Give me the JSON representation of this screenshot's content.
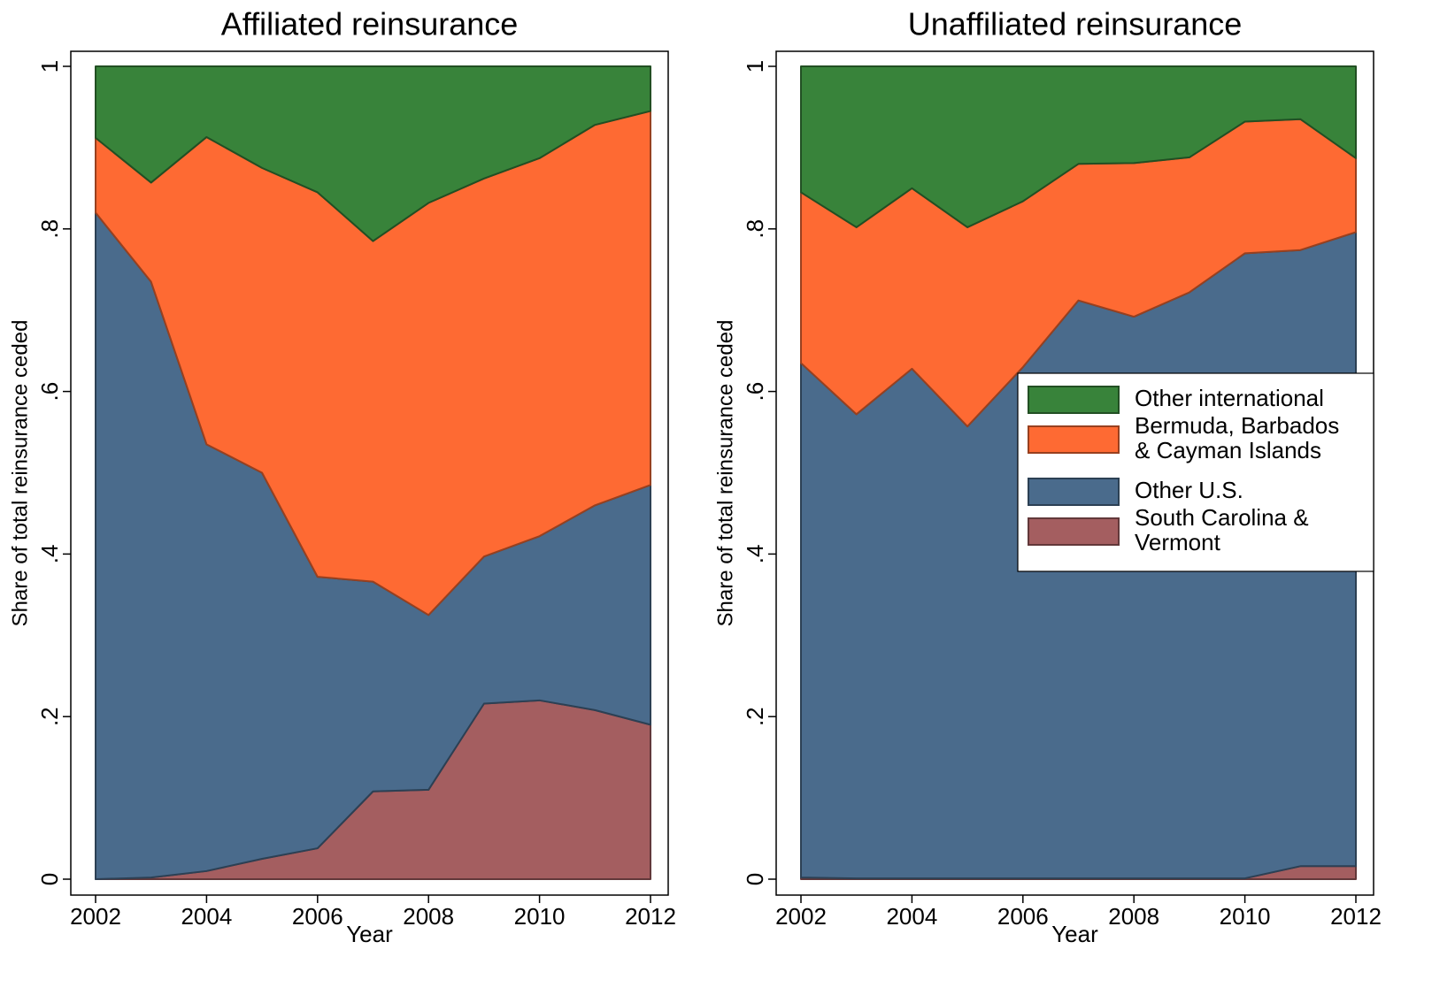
{
  "chart_data": [
    {
      "type": "area",
      "stacked": true,
      "title": "Affiliated reinsurance",
      "xlabel": "Year",
      "ylabel": "Share of total reinsurance ceded",
      "x": [
        2002,
        2003,
        2004,
        2005,
        2006,
        2007,
        2008,
        2009,
        2010,
        2011,
        2012
      ],
      "xlim": [
        2002,
        2012
      ],
      "xticks": [
        2002,
        2004,
        2006,
        2008,
        2010,
        2012
      ],
      "ylim": [
        0,
        1
      ],
      "yticks": [
        0,
        {
          "value": 0.2,
          "label": ".2"
        },
        {
          "value": 0.4,
          "label": ".4"
        },
        {
          "value": 0.6,
          "label": ".6"
        },
        {
          "value": 0.8,
          "label": ".8"
        },
        1
      ],
      "series": [
        {
          "color": "#a45e60",
          "values": [
            0,
            0.002,
            0.01,
            0.025,
            0.038,
            0.108,
            0.11,
            0.216,
            0.22,
            0.208,
            0.19
          ]
        },
        {
          "color": "#4a6b8c",
          "values": [
            0.82,
            0.733,
            0.525,
            0.475,
            0.334,
            0.258,
            0.215,
            0.181,
            0.202,
            0.252,
            0.295
          ]
        },
        {
          "color": "#fe6a33",
          "values": [
            0.092,
            0.122,
            0.378,
            0.375,
            0.473,
            0.419,
            0.507,
            0.465,
            0.465,
            0.468,
            0.46
          ]
        },
        {
          "color": "#38833a",
          "values": [
            0.088,
            0.143,
            0.087,
            0.125,
            0.155,
            0.215,
            0.168,
            0.138,
            0.113,
            0.072,
            0.055
          ]
        }
      ]
    },
    {
      "type": "area",
      "stacked": true,
      "title": "Unaffiliated reinsurance",
      "xlabel": "Year",
      "ylabel": "Share of total reinsurance ceded",
      "x": [
        2002,
        2003,
        2004,
        2005,
        2006,
        2007,
        2008,
        2009,
        2010,
        2011,
        2012
      ],
      "xlim": [
        2002,
        2012
      ],
      "xticks": [
        2002,
        2004,
        2006,
        2008,
        2010,
        2012
      ],
      "ylim": [
        0,
        1
      ],
      "yticks": [
        0,
        {
          "value": 0.2,
          "label": ".2"
        },
        {
          "value": 0.4,
          "label": ".4"
        },
        {
          "value": 0.6,
          "label": ".6"
        },
        {
          "value": 0.8,
          "label": ".8"
        },
        1
      ],
      "legend": "center-right",
      "series": [
        {
          "name": "South Carolina &\nVermont",
          "color": "#a45e60",
          "values": [
            0.002,
            0.001,
            0.001,
            0.001,
            0.001,
            0.001,
            0.001,
            0.001,
            0.001,
            0.016,
            0.016
          ]
        },
        {
          "name": "Other U.S.",
          "color": "#4a6b8c",
          "values": [
            0.633,
            0.571,
            0.627,
            0.556,
            0.629,
            0.711,
            0.691,
            0.721,
            0.769,
            0.758,
            0.78
          ]
        },
        {
          "name": "Bermuda, Barbados\n& Cayman Islands",
          "color": "#fe6a33",
          "values": [
            0.21,
            0.23,
            0.222,
            0.245,
            0.204,
            0.168,
            0.189,
            0.166,
            0.162,
            0.161,
            0.091
          ]
        },
        {
          "name": "Other international",
          "color": "#38833a",
          "values": [
            0.155,
            0.198,
            0.15,
            0.198,
            0.166,
            0.12,
            0.119,
            0.112,
            0.068,
            0.065,
            0.113
          ]
        }
      ]
    }
  ]
}
